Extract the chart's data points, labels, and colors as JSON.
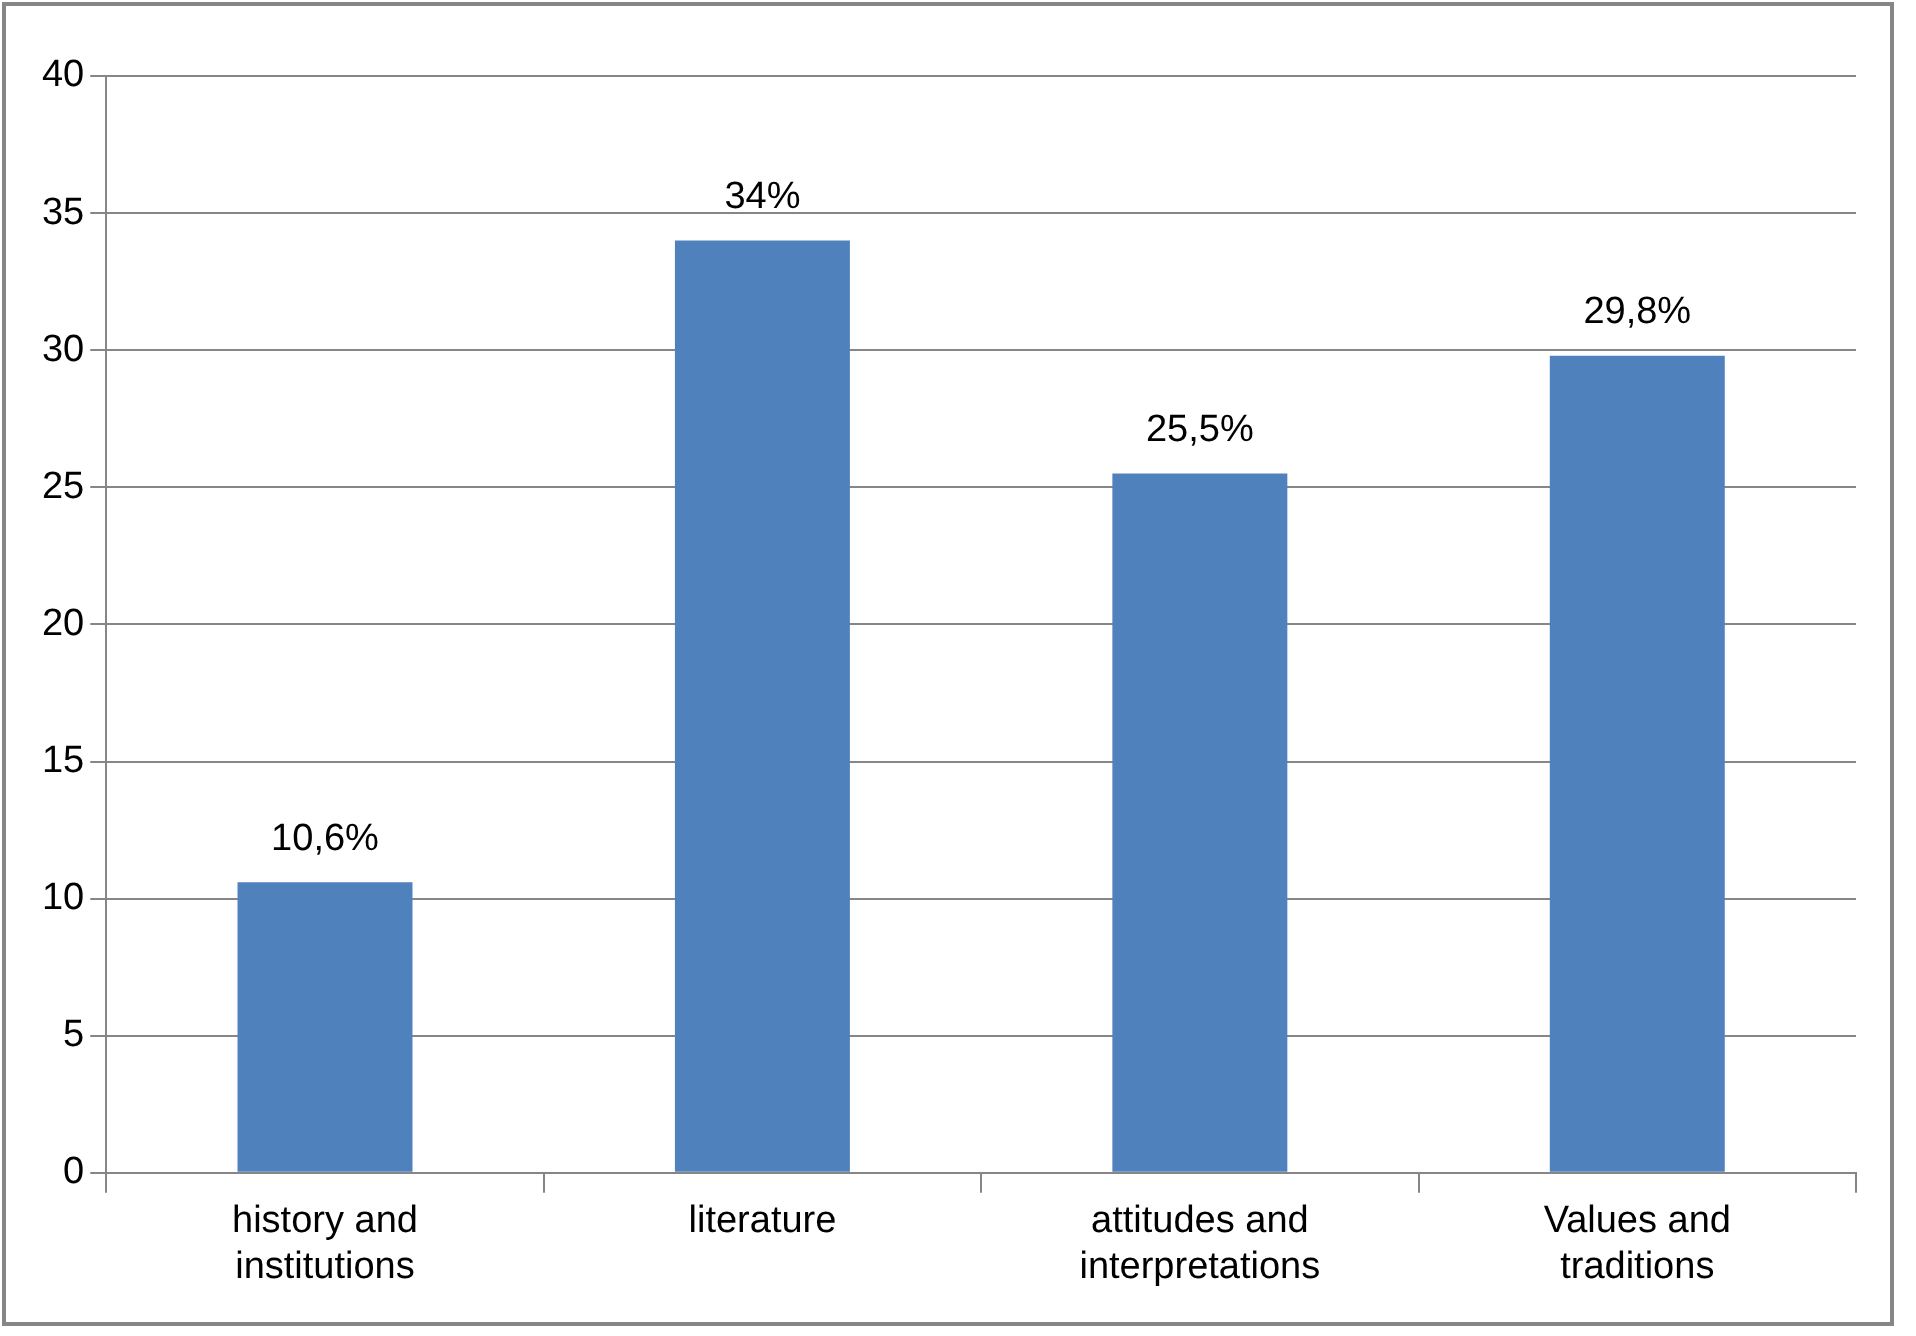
{
  "chart_data": {
    "type": "bar",
    "categories": [
      "history and institutions",
      "literature",
      "attitudes and interpretations",
      "Values and traditions"
    ],
    "values": [
      10.6,
      34,
      25.5,
      29.8
    ],
    "color": "#4f81bd",
    "value_labels": [
      "10,6%",
      "34%",
      "25,5%",
      "29,8%"
    ],
    "ylim": [
      0,
      40
    ],
    "yticks": [
      0,
      5,
      10,
      15,
      20,
      25,
      30,
      35,
      40
    ],
    "grid": "y",
    "legend": false
  }
}
